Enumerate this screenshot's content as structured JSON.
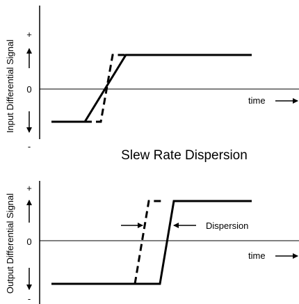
{
  "title": "Slew Rate Dispersion",
  "top_panel": {
    "y_axis_label": "Input Differential Signal",
    "plus_marker": "+",
    "zero_marker": "0",
    "minus_marker": "-",
    "time_label": "time"
  },
  "bottom_panel": {
    "y_axis_label": "Output Differential Signal",
    "plus_marker": "+",
    "zero_marker": "0",
    "minus_marker": "-",
    "time_label": "time",
    "dispersion_label": "Dispersion"
  }
}
